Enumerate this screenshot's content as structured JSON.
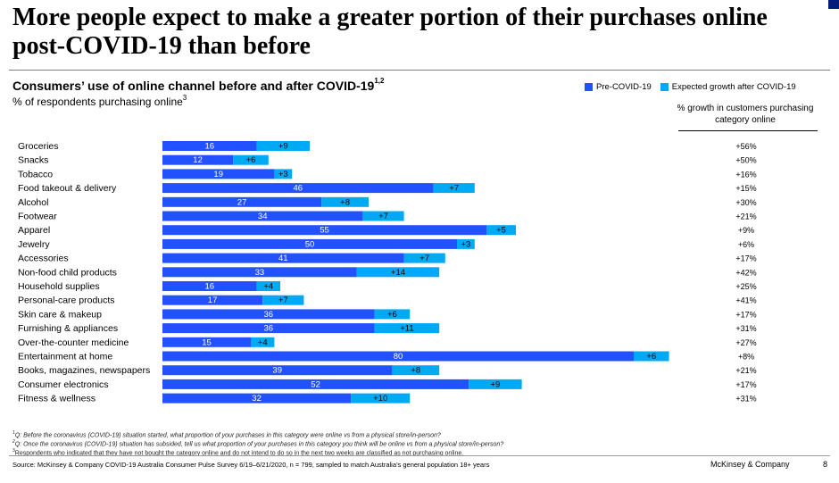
{
  "page": {
    "title": "More people expect to make a greater portion of their purchases online post-COVID-19 than before",
    "brand": "McKinsey & Company",
    "page_number": "8"
  },
  "chart_data": {
    "type": "bar",
    "orientation": "horizontal",
    "stacked": true,
    "title": "Consumers’ use of online channel before and after COVID-19",
    "title_footnote": "1,2",
    "subtitle": "% of respondents purchasing online",
    "subtitle_footnote": "3",
    "xlim": [
      0,
      100
    ],
    "categories": [
      "Groceries",
      "Snacks",
      "Tobacco",
      "Food takeout & delivery",
      "Alcohol",
      "Footwear",
      "Apparel",
      "Jewelry",
      "Accessories",
      "Non-food child products",
      "Household supplies",
      "Personal-care products",
      "Skin care & makeup",
      "Furnishing & appliances",
      "Over-the-counter medicine",
      "Entertainment at home",
      "Books, magazines, newspapers",
      "Consumer electronics",
      "Fitness & wellness"
    ],
    "series": [
      {
        "name": "Pre-COVID-19",
        "color": "#2251ff",
        "values": [
          16,
          12,
          19,
          46,
          27,
          34,
          55,
          50,
          41,
          33,
          16,
          17,
          36,
          36,
          15,
          80,
          39,
          52,
          32
        ]
      },
      {
        "name": "Expected growth after COVID-19",
        "color": "#00a9f4",
        "values": [
          9,
          6,
          3,
          7,
          8,
          7,
          5,
          3,
          7,
          14,
          4,
          7,
          6,
          11,
          4,
          6,
          8,
          9,
          10
        ]
      }
    ],
    "growth_column": {
      "header": "% growth in customers purchasing category online",
      "values": [
        "+56%",
        "+50%",
        "+16%",
        "+15%",
        "+30%",
        "+21%",
        "+9%",
        "+6%",
        "+17%",
        "+42%",
        "+25%",
        "+41%",
        "+17%",
        "+31%",
        "+27%",
        "+8%",
        "+21%",
        "+17%",
        "+31%"
      ]
    },
    "legend_position": "top-right"
  },
  "footnotes": [
    {
      "mark": "1",
      "text": "Q: Before the coronavirus (COVID-19) situation started, what proportion of your purchases in this category were online vs from a physical store/in-person?"
    },
    {
      "mark": "2",
      "text": "Q: Once the coronavirus (COVID-19) situation has subsided, tell us what proportion of your purchases in this category you think will be online vs from a physical store/in-person?"
    },
    {
      "mark": "3",
      "text": "Respondents who indicated that they have not bought the category online and do not intend to do so in the next two weeks are classified as not purchasing online."
    }
  ],
  "source": "Source: McKinsey & Company COVID-19 Australia Consumer Pulse Survey 6/19–6/21/2020, n = 799, sampled to match Australia’s general population 18+ years"
}
